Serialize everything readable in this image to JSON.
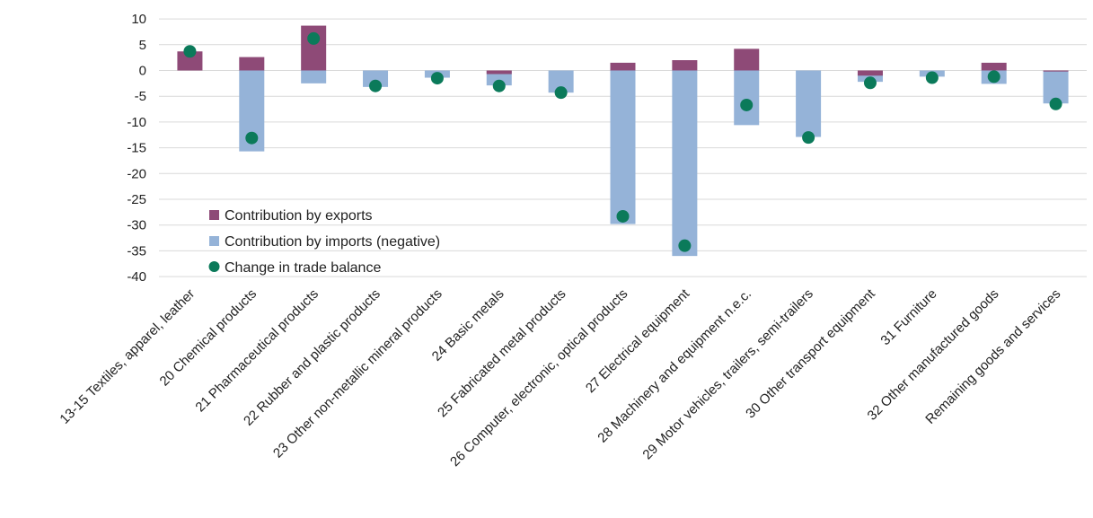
{
  "colors": {
    "exports": "#8e4a77",
    "imports": "#95b3d8",
    "balance": "#0b7a5a",
    "grid": "#d9d9d9"
  },
  "legend": {
    "exports": "Contribution by exports",
    "imports": "Contribution by imports (negative)",
    "balance": "Change in trade balance"
  },
  "chart_data": {
    "type": "bar",
    "stacked": true,
    "grid": true,
    "legend_position": "bottom-left inside plot",
    "ylim": [
      -40,
      10
    ],
    "yticks": [
      10,
      5,
      0,
      -5,
      -10,
      -15,
      -20,
      -25,
      -30,
      -35,
      -40
    ],
    "categories": [
      "13-15 Textiles, apparel, leather",
      "20 Chemical products",
      "21 Pharmaceutical products",
      "22 Rubber and plastic products",
      "23 Other non-metallic mineral products",
      "24 Basic metals",
      "25 Fabricated metal products",
      "26 Computer, electronic, optical products",
      "27 Electrical equipment",
      "28 Machinery and equipment n.e.c.",
      "29 Motor vehicles, trailers, semi-trailers",
      "30 Other transport equipment",
      "31 Furniture",
      "32 Other manufactured goods",
      "Remaining goods and services"
    ],
    "series": [
      {
        "name": "Contribution by exports",
        "type": "bar",
        "values": [
          3.7,
          2.6,
          8.7,
          0,
          0,
          -0.7,
          0,
          1.5,
          2.0,
          4.2,
          0,
          -1.0,
          0,
          1.5,
          -0.2
        ]
      },
      {
        "name": "Contribution by imports (negative)",
        "type": "bar",
        "values": [
          0,
          -15.7,
          -2.5,
          -3.2,
          -1.4,
          -2.9,
          -4.3,
          -29.8,
          -36.0,
          -10.6,
          -12.9,
          -2.2,
          -1.2,
          -2.6,
          -6.4
        ]
      },
      {
        "name": "Change in trade balance",
        "type": "scatter",
        "values": [
          3.7,
          -13.1,
          6.2,
          -3.0,
          -1.5,
          -3.0,
          -4.3,
          -28.3,
          -34.0,
          -6.7,
          -13.0,
          -2.4,
          -1.4,
          -1.2,
          -6.5
        ]
      }
    ]
  }
}
